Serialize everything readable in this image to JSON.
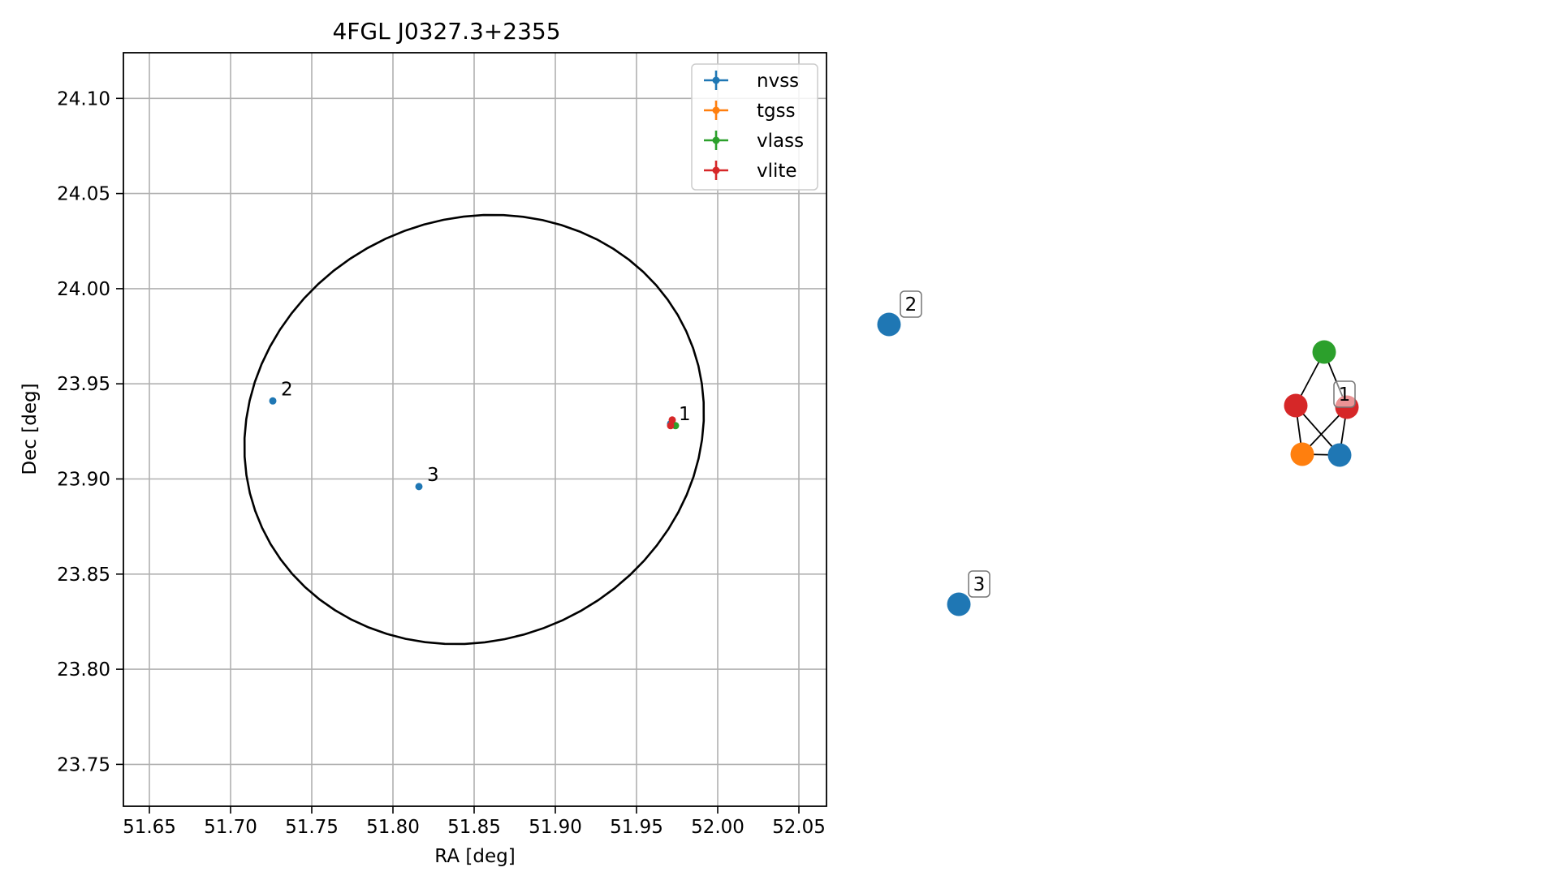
{
  "chart_data": [
    {
      "type": "scatter",
      "title": "4FGL J0327.3+2355",
      "xlabel": "RA [deg]",
      "ylabel": "Dec [deg]",
      "xlim": [
        51.634,
        52.067
      ],
      "ylim": [
        23.728,
        24.124
      ],
      "xticks": [
        "51.65",
        "51.70",
        "51.75",
        "51.80",
        "51.85",
        "51.90",
        "51.95",
        "52.00",
        "52.05"
      ],
      "yticks": [
        "23.75",
        "23.80",
        "23.85",
        "23.90",
        "23.95",
        "24.00",
        "24.05",
        "24.10"
      ],
      "grid": true,
      "legend_position": "top-right",
      "legend_marker": "errorbar-cross",
      "series": [
        {
          "name": "nvss",
          "color": "#1f77b4",
          "points": [
            {
              "x": 51.726,
              "y": 23.941
            },
            {
              "x": 51.816,
              "y": 23.896
            },
            {
              "x": 51.971,
              "y": 23.929
            }
          ]
        },
        {
          "name": "tgss",
          "color": "#ff7f0e",
          "points": [
            {
              "x": 51.972,
              "y": 23.929
            }
          ]
        },
        {
          "name": "vlass",
          "color": "#2ca02c",
          "points": [
            {
              "x": 51.974,
              "y": 23.928
            }
          ]
        },
        {
          "name": "vlite",
          "color": "#d62728",
          "points": [
            {
              "x": 51.971,
              "y": 23.928
            },
            {
              "x": 51.972,
              "y": 23.931
            }
          ]
        }
      ],
      "annotations": [
        {
          "text": "1",
          "x": 51.976,
          "y": 23.931
        },
        {
          "text": "2",
          "x": 51.731,
          "y": 23.944
        },
        {
          "text": "3",
          "x": 51.821,
          "y": 23.899
        }
      ],
      "ellipse": {
        "center_x": 51.85,
        "center_y": 23.926,
        "semi_major": 0.1423,
        "semi_minor": 0.1118,
        "rotation_deg": 9.7
      }
    },
    {
      "type": "network",
      "nodes": [
        {
          "id": "n2",
          "color": "#1f77b4",
          "label": "2"
        },
        {
          "id": "n3",
          "color": "#1f77b4",
          "label": "3"
        },
        {
          "id": "g",
          "color": "#2ca02c"
        },
        {
          "id": "r1",
          "color": "#d62728"
        },
        {
          "id": "r2",
          "color": "#d62728"
        },
        {
          "id": "o",
          "color": "#ff7f0e"
        },
        {
          "id": "b",
          "color": "#1f77b4"
        }
      ],
      "edges": [
        [
          "g",
          "r1"
        ],
        [
          "g",
          "r2"
        ],
        [
          "r1",
          "o"
        ],
        [
          "r1",
          "b"
        ],
        [
          "r2",
          "o"
        ],
        [
          "r2",
          "b"
        ],
        [
          "o",
          "b"
        ]
      ],
      "group_labels": [
        {
          "text": "1"
        }
      ]
    }
  ]
}
